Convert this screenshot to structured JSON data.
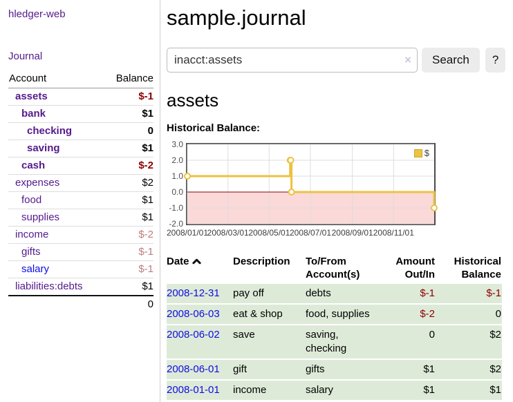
{
  "app": {
    "brand": "hledger-web"
  },
  "sidebar": {
    "journal_link": "Journal",
    "accounts_header": {
      "account": "Account",
      "balance": "Balance"
    },
    "accounts": [
      {
        "label": "assets",
        "balance": "$-1",
        "depth": 1,
        "bold": true,
        "balance_class": "neg"
      },
      {
        "label": "bank",
        "balance": "$1",
        "depth": 2,
        "bold": true,
        "balance_class": ""
      },
      {
        "label": "checking",
        "balance": "0",
        "depth": 3,
        "bold": true,
        "balance_class": ""
      },
      {
        "label": "saving",
        "balance": "$1",
        "depth": 3,
        "bold": true,
        "balance_class": ""
      },
      {
        "label": "cash",
        "balance": "$-2",
        "depth": 2,
        "bold": true,
        "balance_class": "neg"
      },
      {
        "label": "expenses",
        "balance": "$2",
        "depth": 1,
        "bold": false,
        "balance_class": ""
      },
      {
        "label": "food",
        "balance": "$1",
        "depth": 2,
        "bold": false,
        "balance_class": ""
      },
      {
        "label": "supplies",
        "balance": "$1",
        "depth": 2,
        "bold": false,
        "balance_class": ""
      },
      {
        "label": "income",
        "balance": "$-2",
        "depth": 1,
        "bold": false,
        "balance_class": "negmuted"
      },
      {
        "label": "gifts",
        "balance": "$-1",
        "depth": 2,
        "bold": false,
        "balance_class": "negmuted"
      },
      {
        "label": "salary",
        "balance": "$-1",
        "depth": 2,
        "bold": false,
        "balance_class": "negmuted",
        "link_blue": true
      },
      {
        "label": "liabilities:debts",
        "balance": "$1",
        "depth": 1,
        "bold": false,
        "balance_class": ""
      }
    ],
    "total": "0"
  },
  "header": {
    "title": "sample.journal"
  },
  "search": {
    "value": "inacct:assets",
    "clear_label": "×",
    "button": "Search",
    "help": "?"
  },
  "account_page": {
    "title": "assets",
    "chart_label": "Historical Balance:"
  },
  "chart_data": {
    "type": "line",
    "step": true,
    "title": "Historical Balance:",
    "xdomain": [
      "2008-01-01",
      "2008-12-31"
    ],
    "ylim": [
      -2,
      3
    ],
    "yticks": [
      "3.0",
      "2.0",
      "1.0",
      "0.0",
      "-1.0",
      "-2.0"
    ],
    "xticks": [
      "2008/01/01",
      "2008/03/01",
      "2008/05/01",
      "2008/07/01",
      "2008/09/01",
      "2008/11/01"
    ],
    "series": [
      {
        "name": "$",
        "color": "#edc240",
        "points": [
          {
            "x": "2008-01-01",
            "v": 1
          },
          {
            "x": "2008-06-01",
            "v": 2
          },
          {
            "x": "2008-06-02",
            "v": 2
          },
          {
            "x": "2008-06-03",
            "v": 0
          },
          {
            "x": "2008-12-31",
            "v": -1
          }
        ]
      }
    ],
    "negative_fill": "#fbd9d9",
    "zero_line_color": "#8b0000",
    "grid_color": "#dddddd",
    "legend_position": "top-right"
  },
  "register": {
    "headers": {
      "date": "Date",
      "description": "Description",
      "accounts": "To/From Account(s)",
      "amount": "Amount Out/In",
      "balance": "Historical Balance"
    },
    "sort_icon": "chevron-up",
    "rows": [
      {
        "date": "2008-12-31",
        "description": "pay off",
        "accounts": "debts",
        "amount": "$-1",
        "amount_neg": true,
        "balance": "$-1",
        "balance_neg": true
      },
      {
        "date": "2008-06-03",
        "description": "eat & shop",
        "accounts": "food, supplies",
        "amount": "$-2",
        "amount_neg": true,
        "balance": "0",
        "balance_neg": false
      },
      {
        "date": "2008-06-02",
        "description": "save",
        "accounts": "saving, checking",
        "amount": "0",
        "amount_neg": false,
        "balance": "$2",
        "balance_neg": false
      },
      {
        "date": "2008-06-01",
        "description": "gift",
        "accounts": "gifts",
        "amount": "$1",
        "amount_neg": false,
        "balance": "$2",
        "balance_neg": false
      },
      {
        "date": "2008-01-01",
        "description": "income",
        "accounts": "salary",
        "amount": "$1",
        "amount_neg": false,
        "balance": "$1",
        "balance_neg": false
      }
    ]
  },
  "colors": {
    "link_purple": "#551a8b",
    "link_blue": "#0d0de0",
    "negative": "#8b0000",
    "negative_muted": "#bd7d7d",
    "row_green": "#deead8",
    "chart_line": "#edc240",
    "chart_negative_bg": "#fbd9d9"
  }
}
